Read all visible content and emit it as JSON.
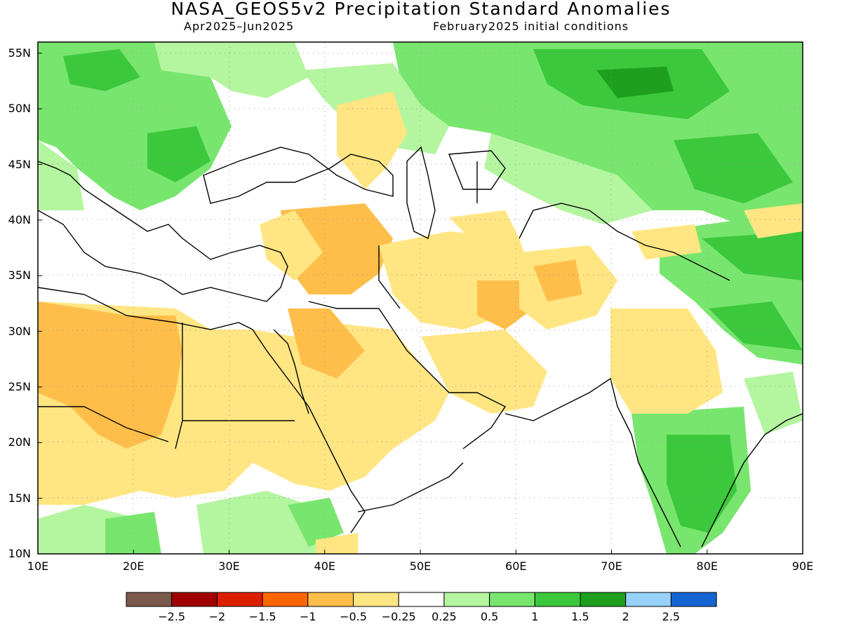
{
  "title": "NASA_GEOS5v2 Precipitation Standard Anomalies",
  "subtitle_left": "Apr2025–Jun2025",
  "subtitle_right": "February2025 initial conditions",
  "lat_labels": [
    "55N",
    "50N",
    "45N",
    "40N",
    "35N",
    "30N",
    "25N",
    "20N",
    "15N",
    "10N"
  ],
  "lon_labels": [
    "10E",
    "20E",
    "30E",
    "40E",
    "50E",
    "60E",
    "70E",
    "80E",
    "90E"
  ],
  "lat_values": [
    55,
    50,
    45,
    40,
    35,
    30,
    25,
    20,
    15,
    10
  ],
  "lon_values": [
    10,
    20,
    30,
    40,
    50,
    60,
    70,
    80,
    90
  ],
  "extent": {
    "lon_min": 10,
    "lon_max": 90,
    "lat_min": 10,
    "lat_max": 56
  },
  "legend": {
    "colors": [
      "#7a5a4a",
      "#a00000",
      "#dc1e00",
      "#ff6600",
      "#ffbe4a",
      "#ffe682",
      "#ffffff",
      "#b4f5a0",
      "#78e66e",
      "#3cc83c",
      "#1ea01e",
      "#96d2fa",
      "#1464d2"
    ],
    "labels": [
      "−2.5",
      "−2",
      "−1.5",
      "−1",
      "−0.5",
      "−0.25",
      "0.25",
      "0.5",
      "1",
      "1.5",
      "2",
      "2.5"
    ]
  },
  "colors": {
    "wet_light": "#b4f5a0",
    "wet": "#78e66e",
    "wet_strong": "#3cc83c",
    "wet_very": "#1ea01e",
    "dry_light": "#ffe682",
    "dry": "#ffbe4a",
    "extreme_wet": "#96d2fa"
  }
}
